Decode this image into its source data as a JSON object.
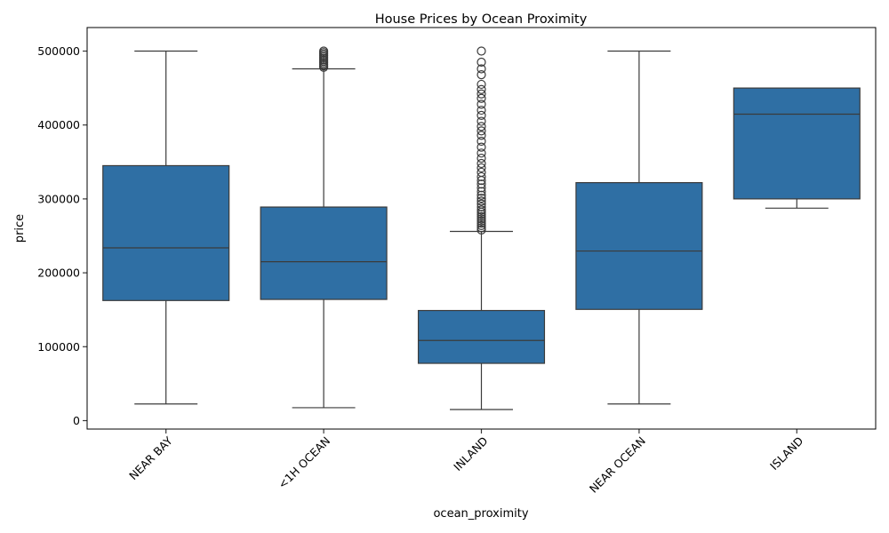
{
  "chart_data": {
    "type": "box",
    "title": "House Prices by Ocean Proximity",
    "xlabel": "ocean_proximity",
    "ylabel": "price",
    "ylim": [
      -10000,
      520000
    ],
    "yticks": [
      0,
      100000,
      200000,
      300000,
      400000,
      500000
    ],
    "ytick_labels": [
      "0",
      "100000",
      "200000",
      "300000",
      "400000",
      "500000"
    ],
    "categories": [
      "NEAR BAY",
      "<1H OCEAN",
      "INLAND",
      "NEAR OCEAN",
      "ISLAND"
    ],
    "grid": false,
    "color": "#2f6fa4",
    "series": [
      {
        "category": "NEAR BAY",
        "whisker_low": 22500,
        "q1": 162500,
        "median": 233800,
        "q3": 345000,
        "whisker_high": 500000,
        "outliers": []
      },
      {
        "category": "<1H OCEAN",
        "whisker_low": 17500,
        "q1": 164000,
        "median": 215000,
        "q3": 289000,
        "whisker_high": 476000,
        "outliers": [
          478000,
          480000,
          482000,
          484000,
          486000,
          488000,
          490000,
          492000,
          494000,
          496000,
          498000,
          500000
        ]
      },
      {
        "category": "INLAND",
        "whisker_low": 15000,
        "q1": 77500,
        "median": 108500,
        "q3": 149000,
        "whisker_high": 256000,
        "outliers": [
          258000,
          261000,
          264000,
          267000,
          270000,
          273000,
          276000,
          279000,
          282000,
          285000,
          289000,
          293000,
          297000,
          301000,
          305000,
          310000,
          315000,
          320000,
          325000,
          330000,
          336000,
          342000,
          348000,
          355000,
          362000,
          370000,
          378000,
          386000,
          392000,
          398000,
          405000,
          413000,
          420000,
          428000,
          436000,
          442000,
          448000,
          455000,
          468000,
          476000,
          485000,
          500000
        ]
      },
      {
        "category": "NEAR OCEAN",
        "whisker_low": 22500,
        "q1": 150500,
        "median": 229500,
        "q3": 322000,
        "whisker_high": 500000,
        "outliers": []
      },
      {
        "category": "ISLAND",
        "whisker_low": 287500,
        "q1": 300000,
        "median": 414700,
        "q3": 450000,
        "whisker_high": 450000,
        "outliers": []
      }
    ]
  }
}
